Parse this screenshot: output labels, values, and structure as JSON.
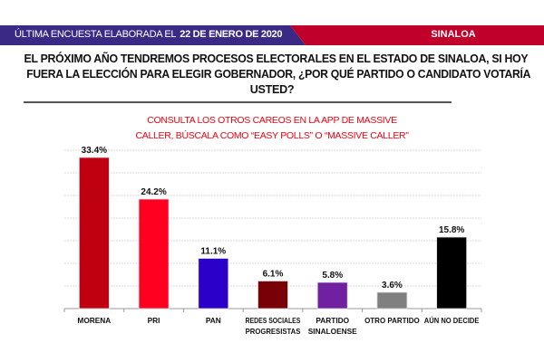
{
  "header": {
    "prefix": "ÚLTIMA ENCUESTA ELABORADA EL",
    "date": "22 DE ENERO DE 2020",
    "region": "SINALOA",
    "colors": {
      "left": "#3a2a85",
      "right": "#c0002a"
    }
  },
  "question": {
    "lines": [
      "EL PRÓXIMO AÑO TENDREMOS PROCESOS ELECTORALES EN EL ESTADO DE SINALOA, SI HOY",
      "FUERA LA ELECCIÓN PARA ELEGIR GOBERNADOR, ¿POR QUÉ PARTIDO O CANDIDATO VOTARÍA",
      "USTED?"
    ]
  },
  "promo": {
    "lines": [
      "CONSULTA LOS OTROS CAREOS EN LA APP DE MASSIVE",
      "CALLER, BÚSCALA COMO “EASY POLLS” O “MASSIVE CALLER”"
    ]
  },
  "chart_data": {
    "type": "bar",
    "title": "",
    "xlabel": "",
    "ylabel": "",
    "ylim": [
      0,
      35
    ],
    "grid": true,
    "categories": [
      [
        "MORENA"
      ],
      [
        "PRI"
      ],
      [
        "PAN"
      ],
      [
        "REDES SOCIALES",
        "PROGRESISTAS"
      ],
      [
        "PARTIDO",
        "SINALOENSE"
      ],
      [
        "OTRO PARTIDO"
      ],
      [
        "AÚN NO DECIDE"
      ]
    ],
    "values": [
      33.4,
      24.2,
      11.1,
      6.1,
      5.8,
      3.6,
      15.8
    ],
    "data_labels": [
      "33.4%",
      "24.2%",
      "11.1%",
      "6.1%",
      "5.8%",
      "3.6%",
      "15.8%"
    ],
    "colors": [
      "#be0010",
      "#ff0020",
      "#2b00c8",
      "#7a0008",
      "#7020a0",
      "#808080",
      "#000000"
    ]
  }
}
